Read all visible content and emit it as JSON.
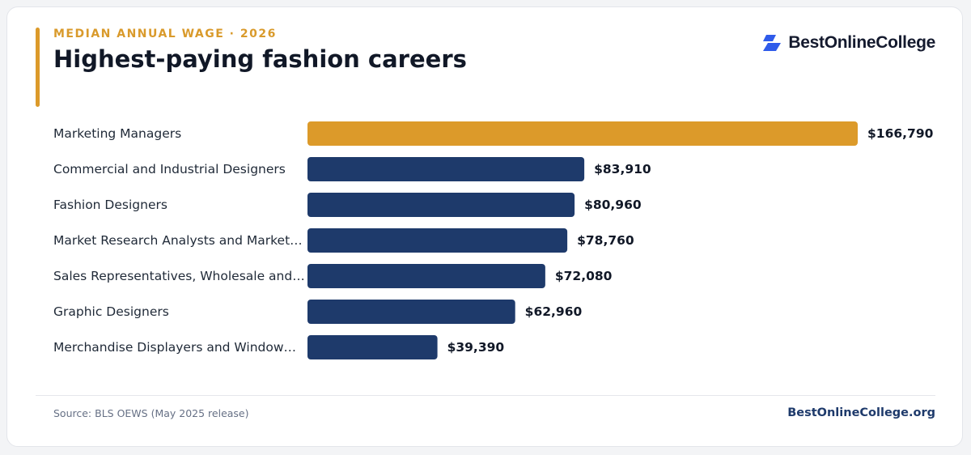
{
  "header": {
    "kicker": "MEDIAN ANNUAL WAGE · 2026",
    "title": "Highest-paying fashion careers"
  },
  "brand": {
    "logo_text": "BestOnlineCollege",
    "logo_icon": "bestonlinecollege-logo-icon",
    "site": "BestOnlineCollege.org"
  },
  "footer": {
    "source": "Source: BLS OEWS (May 2025 release)"
  },
  "colors": {
    "highlight": "#dc9a2a",
    "bar": "#1e3a6b",
    "kicker": "#d99a2b"
  },
  "chart_data": {
    "type": "bar",
    "orientation": "horizontal",
    "categories": [
      "Marketing Managers",
      "Commercial and Industrial Designers",
      "Fashion Designers",
      "Market Research Analysts and Market…",
      "Sales Representatives, Wholesale and…",
      "Graphic Designers",
      "Merchandise Displayers and Window…"
    ],
    "values": [
      166790,
      83910,
      80960,
      78760,
      72080,
      62960,
      39390
    ],
    "value_labels": [
      "$166,790",
      "$83,910",
      "$80,960",
      "$78,760",
      "$72,080",
      "$62,960",
      "$39,390"
    ],
    "highlight_index": 0,
    "xlim": [
      0,
      166790
    ],
    "grid": false,
    "legend": "none"
  }
}
